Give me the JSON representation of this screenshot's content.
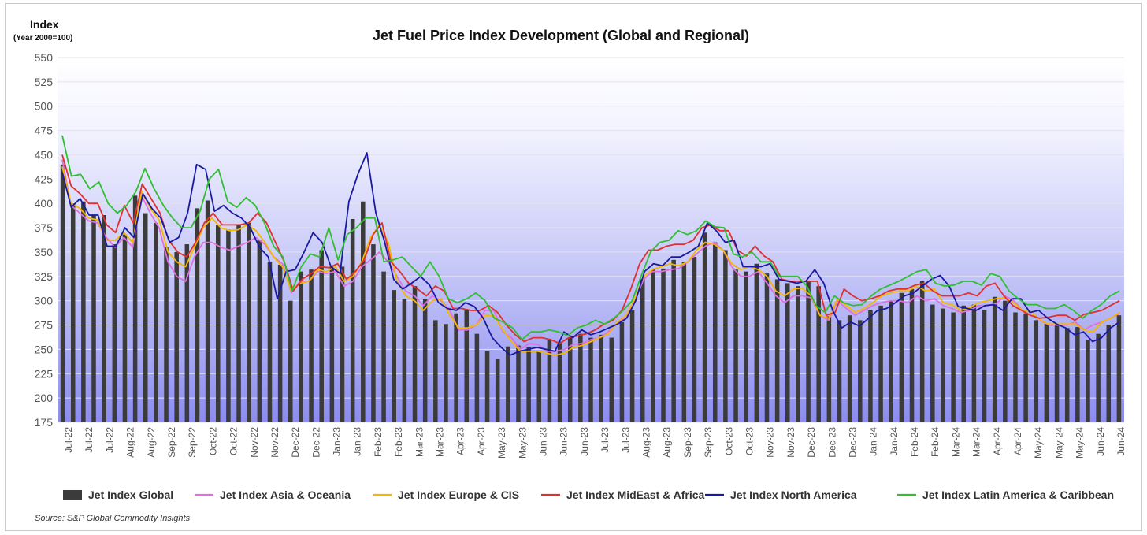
{
  "chart_data": {
    "type": "bar+line",
    "title": "Jet Fuel Price Index Development (Global and Regional)",
    "ylabel": "Index",
    "ylabel_sub": "(Year 2000=100)",
    "ylim": [
      175,
      550
    ],
    "yticks": [
      175,
      200,
      225,
      250,
      275,
      300,
      325,
      350,
      375,
      400,
      425,
      450,
      475,
      500,
      525,
      550
    ],
    "grid": true,
    "legend_position": "bottom",
    "source": "Source:  S&P Global Commodity Insights",
    "xtick_labels": [
      "Jul-22",
      "Jul-22",
      "Jul-22",
      "Aug-22",
      "Aug-22",
      "Sep-22",
      "Sep-22",
      "Oct-22",
      "Oct-22",
      "Nov-22",
      "Nov-22",
      "Dec-22",
      "Dec-22",
      "Jan-23",
      "Jan-23",
      "Feb-23",
      "Feb-23",
      "Mar-23",
      "Mar-23",
      "Apr-23",
      "Apr-23",
      "May-23",
      "May-23",
      "Jun-23",
      "Jun-23",
      "Jun-23",
      "Jul-23",
      "Jul-23",
      "Aug-23",
      "Aug-23",
      "Sep-23",
      "Sep-23",
      "Oct-23",
      "Oct-23",
      "Nov-23",
      "Nov-23",
      "Dec-23",
      "Dec-23",
      "Dec-23",
      "Jan-24",
      "Jan-24",
      "Feb-24",
      "Feb-24",
      "Mar-24",
      "Mar-24",
      "Apr-24",
      "Apr-24",
      "May-24",
      "May-24",
      "May-24",
      "Jun-24",
      "Jun-24"
    ],
    "series": [
      {
        "name": "Jet Index Global",
        "kind": "bar",
        "color": "#3b3b3b",
        "values": [
          440,
          400,
          402,
          388,
          388,
          358,
          368,
          408,
          390,
          380,
          355,
          350,
          358,
          395,
          403,
          378,
          373,
          378,
          380,
          362,
          340,
          337,
          300,
          330,
          332,
          352,
          335,
          335,
          384,
          402,
          358,
          330,
          311,
          302,
          315,
          302,
          280,
          276,
          287,
          290,
          266,
          248,
          240,
          253,
          254,
          252,
          248,
          260,
          258,
          262,
          266,
          262,
          265,
          262,
          278,
          290,
          322,
          333,
          333,
          342,
          340,
          345,
          370,
          360,
          352,
          332,
          330,
          338,
          328,
          322,
          318,
          315,
          320,
          315,
          284,
          280,
          285,
          280,
          290,
          295,
          300,
          308,
          312,
          320,
          296,
          292,
          288,
          295,
          296,
          290,
          304,
          300,
          288,
          287,
          280,
          276,
          275,
          272,
          273,
          260,
          266,
          275,
          285
        ]
      },
      {
        "name": "Jet Index Asia & Oceania",
        "kind": "line",
        "color": "#e070e0",
        "values": [
          445,
          398,
          390,
          382,
          380,
          365,
          355,
          365,
          355,
          408,
          390,
          375,
          340,
          325,
          320,
          345,
          360,
          360,
          355,
          352,
          356,
          360,
          365,
          358,
          345,
          338,
          308,
          320,
          320,
          330,
          328,
          330,
          315,
          320,
          335,
          342,
          350,
          340,
          325,
          310,
          305,
          295,
          305,
          300,
          290,
          270,
          270,
          275,
          290,
          290,
          268,
          262,
          250,
          256,
          255,
          248,
          248,
          250,
          255,
          256,
          260,
          262,
          268,
          278,
          282,
          300,
          322,
          330,
          330,
          332,
          333,
          340,
          348,
          356,
          360,
          352,
          335,
          325,
          325,
          330,
          318,
          305,
          298,
          305,
          305,
          303,
          285,
          280,
          300,
          292,
          285,
          290,
          295,
          298,
          300,
          300,
          298,
          305,
          300,
          302,
          295,
          292,
          288,
          290,
          295,
          295,
          297,
          305,
          300,
          290,
          288,
          280,
          275,
          275,
          275,
          278,
          270,
          275,
          278,
          282,
          287
        ]
      },
      {
        "name": "Jet Index Europe & CIS",
        "kind": "line",
        "color": "#f5b800",
        "values": [
          438,
          400,
          395,
          385,
          383,
          362,
          362,
          370,
          360,
          413,
          395,
          383,
          350,
          340,
          335,
          355,
          375,
          385,
          375,
          372,
          373,
          378,
          372,
          360,
          345,
          335,
          310,
          318,
          320,
          332,
          330,
          335,
          320,
          325,
          340,
          365,
          378,
          360,
          320,
          305,
          300,
          290,
          300,
          302,
          285,
          272,
          272,
          275,
          285,
          285,
          270,
          258,
          248,
          248,
          248,
          246,
          244,
          246,
          252,
          254,
          258,
          262,
          266,
          278,
          285,
          302,
          325,
          332,
          335,
          338,
          336,
          340,
          352,
          360,
          358,
          352,
          338,
          332,
          335,
          332,
          325,
          310,
          305,
          312,
          313,
          305,
          285,
          282,
          302,
          295,
          288,
          292,
          298,
          305,
          308,
          310,
          310,
          315,
          310,
          312,
          298,
          296,
          290,
          293,
          298,
          300,
          302,
          303,
          298,
          290,
          288,
          280,
          276,
          276,
          276,
          276,
          270,
          268,
          278,
          282,
          288
        ]
      },
      {
        "name": "Jet Index MidEast & Africa",
        "kind": "line",
        "color": "#e03030",
        "values": [
          450,
          418,
          410,
          400,
          400,
          378,
          370,
          398,
          380,
          420,
          405,
          390,
          362,
          350,
          345,
          360,
          380,
          390,
          378,
          378,
          378,
          380,
          390,
          380,
          360,
          340,
          310,
          322,
          328,
          335,
          334,
          338,
          322,
          330,
          342,
          368,
          380,
          340,
          330,
          318,
          312,
          305,
          315,
          310,
          292,
          292,
          290,
          290,
          295,
          288,
          275,
          265,
          258,
          262,
          262,
          260,
          256,
          262,
          264,
          266,
          270,
          276,
          280,
          290,
          312,
          338,
          352,
          352,
          356,
          358,
          358,
          362,
          375,
          378,
          372,
          372,
          352,
          346,
          356,
          346,
          340,
          322,
          320,
          320,
          320,
          320,
          285,
          288,
          312,
          305,
          300,
          302,
          305,
          310,
          312,
          312,
          316,
          318,
          310,
          305,
          305,
          305,
          308,
          305,
          315,
          318,
          305,
          295,
          290,
          285,
          282,
          283,
          285,
          285,
          280,
          286,
          288,
          290,
          295,
          300
        ]
      },
      {
        "name": "Jet Index North America",
        "kind": "line",
        "color": "#1a1aa0",
        "values": [
          432,
          396,
          405,
          388,
          388,
          356,
          356,
          375,
          365,
          410,
          395,
          385,
          360,
          365,
          390,
          440,
          435,
          392,
          398,
          390,
          385,
          375,
          355,
          345,
          302,
          330,
          332,
          350,
          370,
          360,
          335,
          328,
          402,
          430,
          452,
          390,
          360,
          322,
          312,
          318,
          325,
          316,
          298,
          292,
          290,
          298,
          294,
          282,
          262,
          252,
          244,
          248,
          250,
          252,
          250,
          248,
          268,
          262,
          270,
          265,
          268,
          272,
          276,
          282,
          300,
          330,
          338,
          336,
          345,
          345,
          350,
          356,
          380,
          372,
          360,
          362,
          335,
          335,
          335,
          338,
          322,
          320,
          318,
          320,
          332,
          318,
          290,
          272,
          278,
          274,
          282,
          290,
          292,
          298,
          305,
          308,
          315,
          322,
          326,
          315,
          294,
          292,
          290,
          295,
          296,
          290,
          302,
          302,
          288,
          290,
          282,
          276,
          272,
          265,
          268,
          258,
          262,
          272,
          278
        ]
      },
      {
        "name": "Jet Index Latin America & Caribbean",
        "kind": "line",
        "color": "#2fbf2f",
        "values": [
          470,
          428,
          430,
          415,
          422,
          400,
          390,
          398,
          412,
          436,
          415,
          398,
          385,
          375,
          375,
          392,
          425,
          435,
          402,
          396,
          406,
          398,
          380,
          356,
          345,
          310,
          335,
          348,
          345,
          375,
          342,
          368,
          375,
          385,
          385,
          340,
          342,
          345,
          335,
          325,
          340,
          325,
          302,
          298,
          302,
          308,
          300,
          282,
          278,
          272,
          260,
          268,
          268,
          270,
          268,
          264,
          272,
          275,
          280,
          276,
          282,
          290,
          300,
          326,
          350,
          360,
          362,
          372,
          368,
          372,
          382,
          376,
          375,
          348,
          345,
          350,
          340,
          340,
          325,
          325,
          325,
          315,
          295,
          288,
          305,
          298,
          295,
          296,
          305,
          312,
          316,
          320,
          325,
          330,
          332,
          318,
          315,
          316,
          320,
          320,
          316,
          328,
          325,
          310,
          302,
          296,
          296,
          292,
          292,
          296,
          290,
          282,
          290,
          296,
          305,
          310
        ]
      }
    ]
  },
  "legend": [
    {
      "label": "Jet Index Global",
      "color": "#3b3b3b",
      "kind": "bar"
    },
    {
      "label": "Jet Index Asia & Oceania",
      "color": "#e070e0",
      "kind": "line"
    },
    {
      "label": "Jet Index Europe & CIS",
      "color": "#f5b800",
      "kind": "line"
    },
    {
      "label": "Jet Index MidEast & Africa",
      "color": "#e03030",
      "kind": "line"
    },
    {
      "label": "Jet Index North America",
      "color": "#1a1aa0",
      "kind": "line"
    },
    {
      "label": "Jet Index Latin America & Caribbean",
      "color": "#2fbf2f",
      "kind": "line"
    }
  ]
}
